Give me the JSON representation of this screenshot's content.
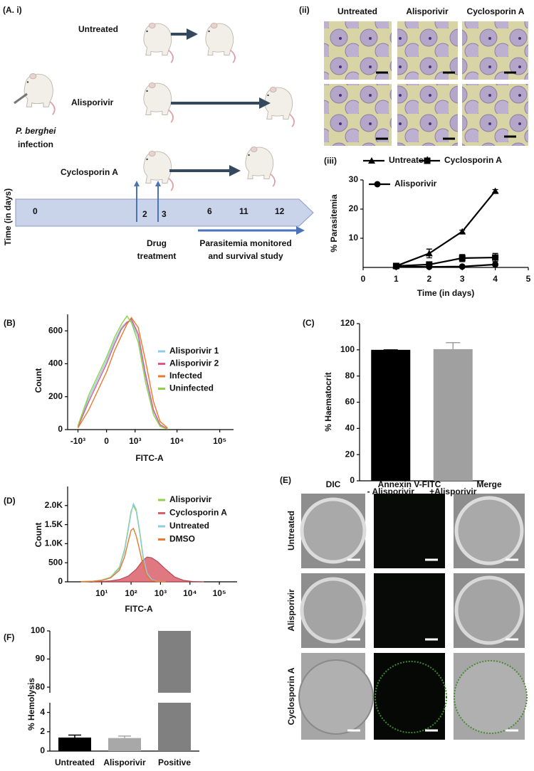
{
  "panel_a": {
    "label": "(A. i)",
    "groups": [
      "Untreated",
      "Alisporivir",
      "Cyclosporin A"
    ],
    "infection": [
      "P. berghei",
      "infection"
    ],
    "timeline_label": "Time (in days)",
    "days": [
      0,
      2,
      3,
      6,
      11,
      12
    ],
    "drug": [
      "Drug",
      "treatment"
    ],
    "monitor": [
      "Parasitemia monitored",
      "and survival study"
    ]
  },
  "panel_a_ii": {
    "label": "(ii)",
    "columns": [
      "Untreated",
      "Alisporivir",
      "Cyclosporin A"
    ]
  },
  "panel_e": {
    "label": "(E)",
    "columns": [
      "DIC",
      "Annexin V-FITC",
      "Merge"
    ],
    "rows": [
      "Untreated",
      "Alisporivir",
      "Cyclosporin A"
    ]
  },
  "chart_data": [
    {
      "type": "line",
      "panel_label": "(iii)",
      "ylabel": "% Parasitemia",
      "xlabel": "Time (in days)",
      "xlim": [
        0,
        5
      ],
      "xticks": [
        0,
        1,
        2,
        3,
        4,
        5
      ],
      "ylim": [
        0,
        30
      ],
      "yticks": [
        10,
        20,
        30
      ],
      "series": [
        {
          "name": "Untreated",
          "color": "#000000",
          "marker": "triangle",
          "x": [
            1,
            2,
            3,
            4
          ],
          "values": [
            0.5,
            4.8,
            12.3,
            26.2
          ],
          "errors": [
            0.3,
            1.5,
            0.5,
            0.5
          ]
        },
        {
          "name": "Cyclosporin A",
          "color": "#000000",
          "marker": "square",
          "x": [
            1,
            2,
            3,
            4
          ],
          "values": [
            0.5,
            1.0,
            3.2,
            3.4
          ],
          "errors": [
            0.2,
            0.5,
            1.2,
            1.4
          ]
        },
        {
          "name": "Alisporivir",
          "color": "#000000",
          "marker": "circle",
          "x": [
            1,
            2,
            3,
            4
          ],
          "values": [
            0.3,
            0.2,
            0.3,
            1.0
          ],
          "errors": [
            0.1,
            0.1,
            0.2,
            0.3
          ]
        }
      ]
    },
    {
      "type": "line",
      "panel_label": "(B)",
      "ylabel": "Count",
      "xlabel": "FITC-A",
      "xscale": "biexponential",
      "xlim": [
        -1800,
        210000
      ],
      "xticks": [
        {
          "value": -1000,
          "label": "-10³"
        },
        0,
        {
          "value": 1000,
          "label": "10³"
        },
        {
          "value": 10000,
          "label": "10⁴"
        },
        {
          "value": 100000,
          "label": "10⁵"
        }
      ],
      "ylim": [
        0,
        700
      ],
      "yticks": [
        0,
        200,
        400,
        600
      ],
      "series": [
        {
          "name": "Alisporivir 1",
          "color": "#8ecbe6",
          "x": [
            -1000,
            -500,
            0,
            200,
            400,
            600,
            800,
            1200,
            1800,
            2800,
            4000,
            6000
          ],
          "values": [
            20,
            190,
            420,
            540,
            620,
            655,
            660,
            560,
            320,
            110,
            25,
            5
          ]
        },
        {
          "name": "Alisporivir 2",
          "color": "#e0568a",
          "x": [
            -1000,
            -500,
            0,
            200,
            400,
            600,
            800,
            1200,
            1800,
            2800,
            4000,
            6000
          ],
          "values": [
            15,
            170,
            400,
            520,
            610,
            650,
            670,
            580,
            340,
            120,
            30,
            5
          ]
        },
        {
          "name": "Infected",
          "color": "#e87a2a",
          "x": [
            -1000,
            -500,
            0,
            200,
            400,
            600,
            800,
            1200,
            1800,
            2800,
            4000,
            6000
          ],
          "values": [
            10,
            120,
            350,
            480,
            570,
            640,
            680,
            620,
            420,
            170,
            50,
            10
          ]
        },
        {
          "name": "Uninfected",
          "color": "#8fd14a",
          "x": [
            -1000,
            -500,
            0,
            200,
            400,
            600,
            800,
            1200,
            1800,
            2800,
            4000,
            6000
          ],
          "values": [
            25,
            210,
            440,
            560,
            640,
            690,
            650,
            530,
            290,
            90,
            20,
            3
          ]
        }
      ]
    },
    {
      "type": "bar",
      "panel_label": "(C)",
      "ylabel": "% Haematocrit",
      "categories": [
        "- Alisporivir",
        "+Alisporivir"
      ],
      "values": [
        100,
        100.5
      ],
      "errors": [
        0,
        5
      ],
      "colors": [
        "#000000",
        "#a0a0a0"
      ],
      "ylim": [
        0,
        120
      ],
      "yticks": [
        0,
        20,
        40,
        60,
        80,
        100,
        120
      ]
    },
    {
      "type": "line",
      "panel_label": "(D)",
      "ylabel": "Count",
      "xlabel": "FITC-A",
      "xscale": "log",
      "xlim": [
        0.7,
        400000
      ],
      "xticks": [
        {
          "value": 10,
          "label": "10¹"
        },
        {
          "value": 100,
          "label": "10²"
        },
        {
          "value": 1000,
          "label": "10³"
        },
        {
          "value": 10000,
          "label": "10⁴"
        },
        {
          "value": 100000,
          "label": "10⁵"
        }
      ],
      "ylim": [
        0,
        2500
      ],
      "yticks": [
        0,
        500,
        {
          "value": 1000,
          "label": "1.0K"
        },
        {
          "value": 1500,
          "label": "1.5K"
        },
        {
          "value": 2000,
          "label": "2.0K"
        }
      ],
      "series": [
        {
          "name": "Alisporivir",
          "color": "#8fd14a",
          "x": [
            2,
            5,
            10,
            20,
            40,
            60,
            80,
            100,
            120,
            150,
            200,
            260,
            350,
            500,
            800,
            1500
          ],
          "values": [
            5,
            15,
            45,
            120,
            380,
            850,
            1400,
            1850,
            2000,
            1850,
            1250,
            600,
            200,
            50,
            8,
            0
          ]
        },
        {
          "name": "Cyclosporin A",
          "color": "#d9606a",
          "fill": true,
          "x": [
            5,
            10,
            20,
            40,
            80,
            150,
            250,
            350,
            500,
            800,
            1500,
            3000,
            6000,
            12000,
            30000
          ],
          "values": [
            5,
            10,
            25,
            60,
            150,
            330,
            560,
            650,
            630,
            530,
            330,
            130,
            40,
            10,
            0
          ]
        },
        {
          "name": "Untreated",
          "color": "#8ecbe6",
          "x": [
            2,
            5,
            10,
            20,
            40,
            60,
            80,
            100,
            120,
            150,
            200,
            260,
            350,
            500,
            800,
            1500
          ],
          "values": [
            5,
            15,
            40,
            110,
            350,
            800,
            1350,
            1800,
            2050,
            1900,
            1300,
            650,
            220,
            60,
            10,
            0
          ]
        },
        {
          "name": "DMSO",
          "color": "#e87a2a",
          "x": [
            2,
            5,
            10,
            20,
            40,
            60,
            80,
            100,
            120,
            150,
            200,
            260,
            350,
            500,
            800,
            1500
          ],
          "values": [
            5,
            12,
            35,
            100,
            300,
            650,
            1050,
            1350,
            1400,
            1200,
            800,
            400,
            130,
            35,
            5,
            0
          ]
        }
      ]
    },
    {
      "type": "broken-bar",
      "panel_label": "(F)",
      "ylabel": "% Hemolysis",
      "categories": [
        "Untreated",
        "Alisporivir",
        "Positive"
      ],
      "values": [
        1.4,
        1.35,
        100
      ],
      "errors": [
        0.25,
        0.2,
        0
      ],
      "colors": [
        "#000000",
        "#a8a8a8",
        "#808080"
      ],
      "ylim_lower": [
        0,
        5
      ],
      "yticks_lower": [
        0,
        2,
        4
      ],
      "ylim_upper": [
        78,
        100
      ],
      "yticks_upper": [
        80,
        90,
        100
      ]
    }
  ]
}
